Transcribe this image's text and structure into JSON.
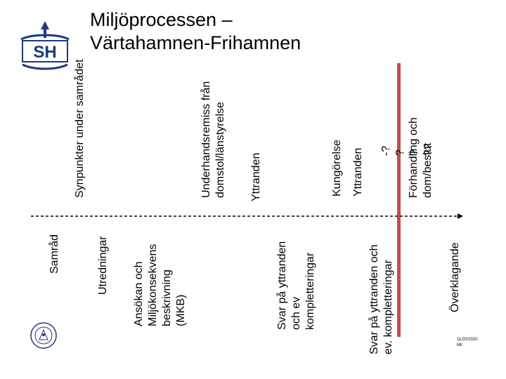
{
  "title": {
    "line1": "Miljöprocessen –",
    "line2": "Värtahamnen-Frihamnen"
  },
  "logo": {
    "text": "SH",
    "accent_color": "#1f3a7a"
  },
  "above_timeline": [
    {
      "lines": [
        "Synpunkter under samrådet"
      ]
    },
    {
      "lines": [
        "Underhandsremiss från",
        "domstol/länstyrelse"
      ]
    },
    {
      "lines": [
        "Yttranden"
      ]
    },
    {
      "lines": [
        "Kungörelse"
      ]
    },
    {
      "lines": [
        "Yttranden"
      ]
    },
    {
      "lines": [
        "-?",
        "?",
        "?",
        "??"
      ]
    },
    {
      "lines": [
        "Förhandling och",
        "dom/beslut"
      ]
    }
  ],
  "below_timeline": [
    {
      "lines": [
        "Samråd"
      ]
    },
    {
      "lines": [
        "Utredningar"
      ]
    },
    {
      "lines": [
        "Ansökan och",
        "Miljökonsekvens",
        "beskrivning",
        "(MKB)"
      ]
    },
    {
      "lines": [
        "Svar på yttranden",
        "och ev",
        "kompletteringar"
      ]
    },
    {
      "lines": [
        "Svar på yttranden och",
        "ev. kompletteringar"
      ]
    },
    {
      "lines": [
        "Överklagande"
      ]
    }
  ],
  "footer": {
    "date": "11/20/2020",
    "page_label": "Mil"
  },
  "colors": {
    "timeline": "#000000",
    "marker": "#c0504d",
    "logo": "#1f3a7a",
    "seal": "#1f3a7a"
  }
}
